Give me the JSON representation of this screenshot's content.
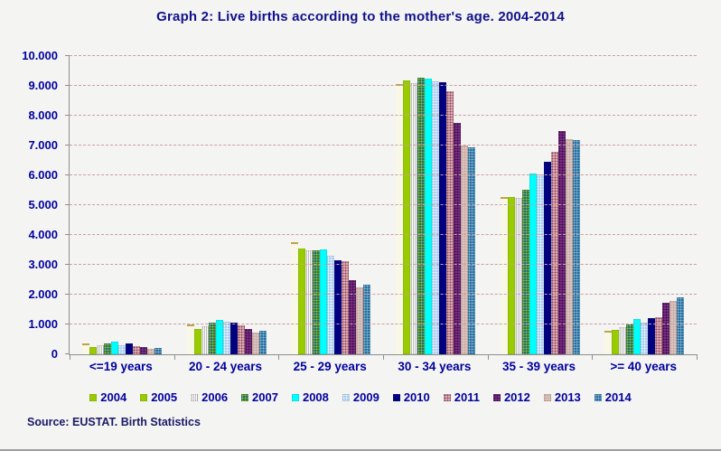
{
  "title": "Graph 2: Live births according to the mother's age. 2004-2014",
  "source": "Source: EUSTAT. Birth Statistics",
  "colors": {
    "title_text": "#10108C",
    "axis_text": "#0000A0",
    "source_text": "#1A1A66",
    "gridline": "#C9A0A4",
    "axis_line": "#8F8F8F",
    "background": "#F4F4F2"
  },
  "chart_data": {
    "type": "bar",
    "title": "Graph 2: Live births according to the mother's age. 2004-2014",
    "xlabel": "",
    "ylabel": "",
    "ylim": [
      0,
      10000
    ],
    "ytick_step": 1000,
    "ytick_labels": [
      "0",
      "1.000",
      "2.000",
      "3.000",
      "4.000",
      "5.000",
      "6.000",
      "7.000",
      "8.000",
      "9.000",
      "10.000"
    ],
    "grid": "horizontal-dashed",
    "legend_position": "bottom",
    "categories": [
      "<=19 years",
      "20 - 24 years",
      "25 - 29 years",
      "30 - 34 years",
      "35 - 39 years",
      ">= 40 years"
    ],
    "series": [
      {
        "name": "2004",
        "values": [
          300,
          930,
          3700,
          9000,
          5200,
          740
        ],
        "fill": "#FFFCD6",
        "accent": "#BFA24A",
        "pattern": "edge",
        "legend_pattern": "solid",
        "legend_fill": "#99CC00"
      },
      {
        "name": "2005",
        "values": [
          250,
          860,
          3550,
          9170,
          5280,
          820
        ],
        "fill": "#99CC00",
        "pattern": "solid"
      },
      {
        "name": "2006",
        "values": [
          300,
          950,
          3500,
          9100,
          5230,
          920
        ],
        "fill": "#FFFFFF",
        "accent": "#BDBDBD",
        "pattern": "vstripes"
      },
      {
        "name": "2007",
        "values": [
          360,
          1050,
          3500,
          9280,
          5530,
          990
        ],
        "fill": "#266E7A",
        "accent": "#99CC00",
        "pattern": "dots"
      },
      {
        "name": "2008",
        "values": [
          420,
          1150,
          3530,
          9230,
          6050,
          1170
        ],
        "fill": "#00FFFF",
        "pattern": "solid"
      },
      {
        "name": "2009",
        "values": [
          310,
          1100,
          3300,
          9150,
          6020,
          1050
        ],
        "fill": "#A8CEF2",
        "accent": "#F2F9FF",
        "pattern": "dots"
      },
      {
        "name": "2010",
        "values": [
          360,
          1050,
          3160,
          9120,
          6440,
          1220
        ],
        "fill": "#000080",
        "pattern": "solid"
      },
      {
        "name": "2011",
        "values": [
          270,
          980,
          3110,
          8830,
          6790,
          1230
        ],
        "fill": "#D9ACB4",
        "accent": "#96455A",
        "pattern": "dots"
      },
      {
        "name": "2012",
        "values": [
          240,
          840,
          2500,
          7760,
          7490,
          1730
        ],
        "fill": "#7D2A8C",
        "accent": "#341038",
        "pattern": "dots"
      },
      {
        "name": "2013",
        "values": [
          190,
          720,
          2230,
          7000,
          7210,
          1780
        ],
        "fill": "#CDC9C9",
        "accent": "#E09A8A",
        "pattern": "dots"
      },
      {
        "name": "2014",
        "values": [
          200,
          790,
          2330,
          6930,
          7180,
          1900
        ],
        "fill": "#39699E",
        "accent": "#6FCBDC",
        "pattern": "dots"
      }
    ]
  }
}
